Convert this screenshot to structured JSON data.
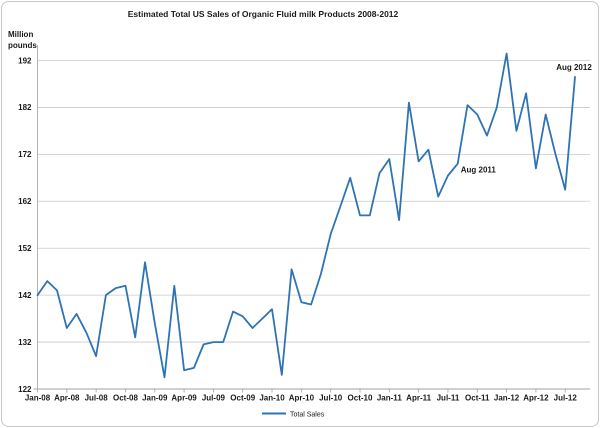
{
  "chart_data": {
    "type": "line",
    "title": "Estimated Total US Sales of Organic Fluid milk Products 2008-2012",
    "ylabel_lines": [
      "Million",
      "pounds"
    ],
    "ylim": [
      122,
      192
    ],
    "ytick_step": 10,
    "ytick_labels": [
      "122",
      "132",
      "142",
      "152",
      "162",
      "172",
      "182",
      "192"
    ],
    "x_tick_labels": [
      "Jan-08",
      "Apr-08",
      "Jul-08",
      "Oct-08",
      "Jan-09",
      "Apr-09",
      "Jul-09",
      "Oct-09",
      "Jan-10",
      "Apr-10",
      "Jul-10",
      "Oct-10",
      "Jan-11",
      "Apr-11",
      "Jul-11",
      "Oct-11",
      "Jan-12",
      "Apr-12",
      "Jul-12"
    ],
    "x_tick_every": 3,
    "x": [
      "Jan-08",
      "Feb-08",
      "Mar-08",
      "Apr-08",
      "May-08",
      "Jun-08",
      "Jul-08",
      "Aug-08",
      "Sep-08",
      "Oct-08",
      "Nov-08",
      "Dec-08",
      "Jan-09",
      "Feb-09",
      "Mar-09",
      "Apr-09",
      "May-09",
      "Jun-09",
      "Jul-09",
      "Aug-09",
      "Sep-09",
      "Oct-09",
      "Nov-09",
      "Dec-09",
      "Jan-10",
      "Feb-10",
      "Mar-10",
      "Apr-10",
      "May-10",
      "Jun-10",
      "Jul-10",
      "Aug-10",
      "Sep-10",
      "Oct-10",
      "Nov-10",
      "Dec-10",
      "Jan-11",
      "Feb-11",
      "Mar-11",
      "Apr-11",
      "May-11",
      "Jun-11",
      "Jul-11",
      "Aug-11",
      "Sep-11",
      "Oct-11",
      "Nov-11",
      "Dec-11",
      "Jan-12",
      "Feb-12",
      "Mar-12",
      "Apr-12",
      "May-12",
      "Jun-12",
      "Jul-12",
      "Aug-12"
    ],
    "series": [
      {
        "name": "Total Sales",
        "color": "#2E74B5",
        "values": [
          142,
          145,
          143,
          135,
          138,
          134,
          129,
          142,
          143.5,
          144,
          133,
          149,
          136,
          124.5,
          144,
          126,
          126.5,
          131.5,
          132,
          132,
          138.5,
          137.5,
          135,
          137,
          139,
          125,
          147.5,
          140.5,
          140,
          146.5,
          155,
          161,
          167,
          159,
          159,
          168,
          171,
          158,
          183,
          170.5,
          173,
          163,
          167.5,
          170,
          182.5,
          180.5,
          176,
          182,
          193.5,
          177,
          185,
          169,
          180.5,
          172,
          164.5,
          188.5
        ]
      }
    ],
    "annotations": [
      {
        "text": "Aug 2011",
        "x": "Aug-11"
      },
      {
        "text": "Aug 2012",
        "x": "Aug-12"
      }
    ],
    "legend_position": "bottom",
    "grid": "horizontal",
    "colors": {
      "line": "#2E74B5",
      "gridline": "#C9C9C9",
      "axis": "#A0A0A0",
      "frame_border": "#C8C8C8",
      "text": "#1a1a1a"
    }
  }
}
